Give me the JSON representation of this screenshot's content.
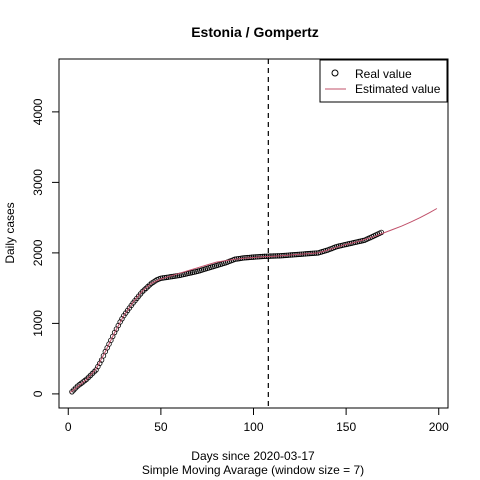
{
  "chart_data": {
    "type": "scatter",
    "title": "Estonia / Gompertz",
    "xlabel": "Days since 2020-03-17",
    "sublabel": "Simple Moving Avarage (window size = 7)",
    "ylabel": "Daily cases",
    "xlim": [
      -5,
      205
    ],
    "ylim": [
      -200,
      4750
    ],
    "xticks": [
      0,
      50,
      100,
      150,
      200
    ],
    "yticks": [
      0,
      1000,
      2000,
      3000,
      4000
    ],
    "vline_x": 108,
    "legend_position": "top-right",
    "colors": {
      "points": "#000000",
      "fit": "#c0506a",
      "vline": "#000000"
    },
    "legend": [
      {
        "label": "Real value",
        "type": "point"
      },
      {
        "label": "Estimated value",
        "type": "line"
      }
    ],
    "real_points": {
      "x_start": 2,
      "x_end": 169,
      "anchors_x": [
        2,
        5,
        10,
        15,
        18,
        20,
        23,
        25,
        28,
        30,
        35,
        40,
        45,
        48,
        50,
        55,
        60,
        65,
        70,
        75,
        80,
        85,
        90,
        95,
        100,
        105,
        110,
        115,
        120,
        125,
        130,
        135,
        140,
        145,
        150,
        155,
        160,
        165,
        169
      ],
      "anchors_y": [
        30,
        110,
        210,
        340,
        480,
        600,
        760,
        870,
        1020,
        1110,
        1290,
        1450,
        1570,
        1620,
        1640,
        1660,
        1680,
        1710,
        1740,
        1780,
        1820,
        1860,
        1910,
        1930,
        1940,
        1950,
        1955,
        1960,
        1970,
        1980,
        1990,
        2000,
        2040,
        2090,
        2120,
        2150,
        2180,
        2240,
        2290
      ]
    },
    "fit_line": {
      "x": [
        1,
        5,
        10,
        15,
        20,
        25,
        30,
        35,
        40,
        45,
        50,
        55,
        60,
        65,
        70,
        75,
        80,
        85,
        90,
        95,
        100,
        105,
        110,
        115,
        120,
        125,
        130,
        135,
        140,
        145,
        150,
        155,
        160,
        165,
        170,
        175,
        180,
        185,
        190,
        195,
        199
      ],
      "y": [
        20,
        100,
        210,
        350,
        600,
        870,
        1110,
        1300,
        1460,
        1570,
        1630,
        1670,
        1710,
        1750,
        1790,
        1830,
        1870,
        1890,
        1910,
        1925,
        1935,
        1945,
        1950,
        1960,
        1970,
        1980,
        1990,
        2000,
        2040,
        2080,
        2120,
        2150,
        2190,
        2230,
        2280,
        2330,
        2380,
        2440,
        2500,
        2570,
        2630
      ]
    }
  }
}
